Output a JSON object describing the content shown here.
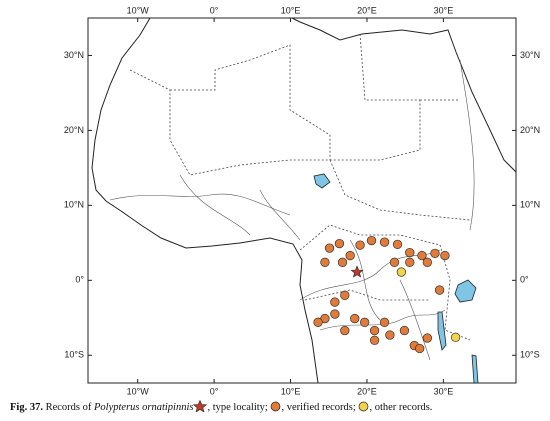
{
  "map": {
    "xlim": [
      -16.5,
      39.5
    ],
    "ylim": [
      -13.7,
      35
    ],
    "xticks": [
      {
        "value": -10,
        "label": "10°W"
      },
      {
        "value": 0,
        "label": "0°"
      },
      {
        "value": 10,
        "label": "10°E"
      },
      {
        "value": 20,
        "label": "20°E"
      },
      {
        "value": 30,
        "label": "30°E"
      }
    ],
    "yticks": [
      {
        "value": 30,
        "label": "30°N"
      },
      {
        "value": 20,
        "label": "20°N"
      },
      {
        "value": 10,
        "label": "10°N"
      },
      {
        "value": 0,
        "label": "0°"
      },
      {
        "value": -10,
        "label": "10°S"
      }
    ],
    "type_locality": {
      "lon": 18.7,
      "lat": 1.1,
      "color": "#c0392b"
    },
    "verified_color": "#e07b39",
    "other_color": "#f3d34a",
    "records": [
      {
        "lon": 15.1,
        "lat": 4.3
      },
      {
        "lon": 16.4,
        "lat": 4.9
      },
      {
        "lon": 17.8,
        "lat": 3.3
      },
      {
        "lon": 19.1,
        "lat": 4.7
      },
      {
        "lon": 20.6,
        "lat": 5.3
      },
      {
        "lon": 22.3,
        "lat": 5.1
      },
      {
        "lon": 24.0,
        "lat": 4.8
      },
      {
        "lon": 25.6,
        "lat": 3.7
      },
      {
        "lon": 27.2,
        "lat": 3.3
      },
      {
        "lon": 28.9,
        "lat": 3.6
      },
      {
        "lon": 30.2,
        "lat": 3.3
      },
      {
        "lon": 14.5,
        "lat": 2.4
      },
      {
        "lon": 16.8,
        "lat": 2.4
      },
      {
        "lon": 23.6,
        "lat": 2.4
      },
      {
        "lon": 25.6,
        "lat": 2.4
      },
      {
        "lon": 27.9,
        "lat": 2.4
      },
      {
        "lon": 29.5,
        "lat": -1.3
      },
      {
        "lon": 17.1,
        "lat": -2.0
      },
      {
        "lon": 15.8,
        "lat": -2.9
      },
      {
        "lon": 14.5,
        "lat": -5.1
      },
      {
        "lon": 15.8,
        "lat": -4.5
      },
      {
        "lon": 18.4,
        "lat": -5.1
      },
      {
        "lon": 19.7,
        "lat": -5.6
      },
      {
        "lon": 21.0,
        "lat": -6.7
      },
      {
        "lon": 22.3,
        "lat": -5.6
      },
      {
        "lon": 21.0,
        "lat": -8.0
      },
      {
        "lon": 23.0,
        "lat": -7.3
      },
      {
        "lon": 24.9,
        "lat": -6.7
      },
      {
        "lon": 26.2,
        "lat": -8.7
      },
      {
        "lon": 26.9,
        "lat": -9.1
      },
      {
        "lon": 27.9,
        "lat": -7.7
      },
      {
        "lon": 17.1,
        "lat": -6.7
      },
      {
        "lon": 13.6,
        "lat": -5.6
      }
    ],
    "other_records": [
      {
        "lon": 24.5,
        "lat": 1.1
      },
      {
        "lon": 31.6,
        "lat": -7.6
      }
    ],
    "caption": {
      "label": "Fig. 37.",
      "text1": "Records of",
      "species": "Polypterus ornatipinnis",
      "text2": ", type locality;",
      "text3": ", verified records;",
      "text4": ", other records."
    }
  }
}
